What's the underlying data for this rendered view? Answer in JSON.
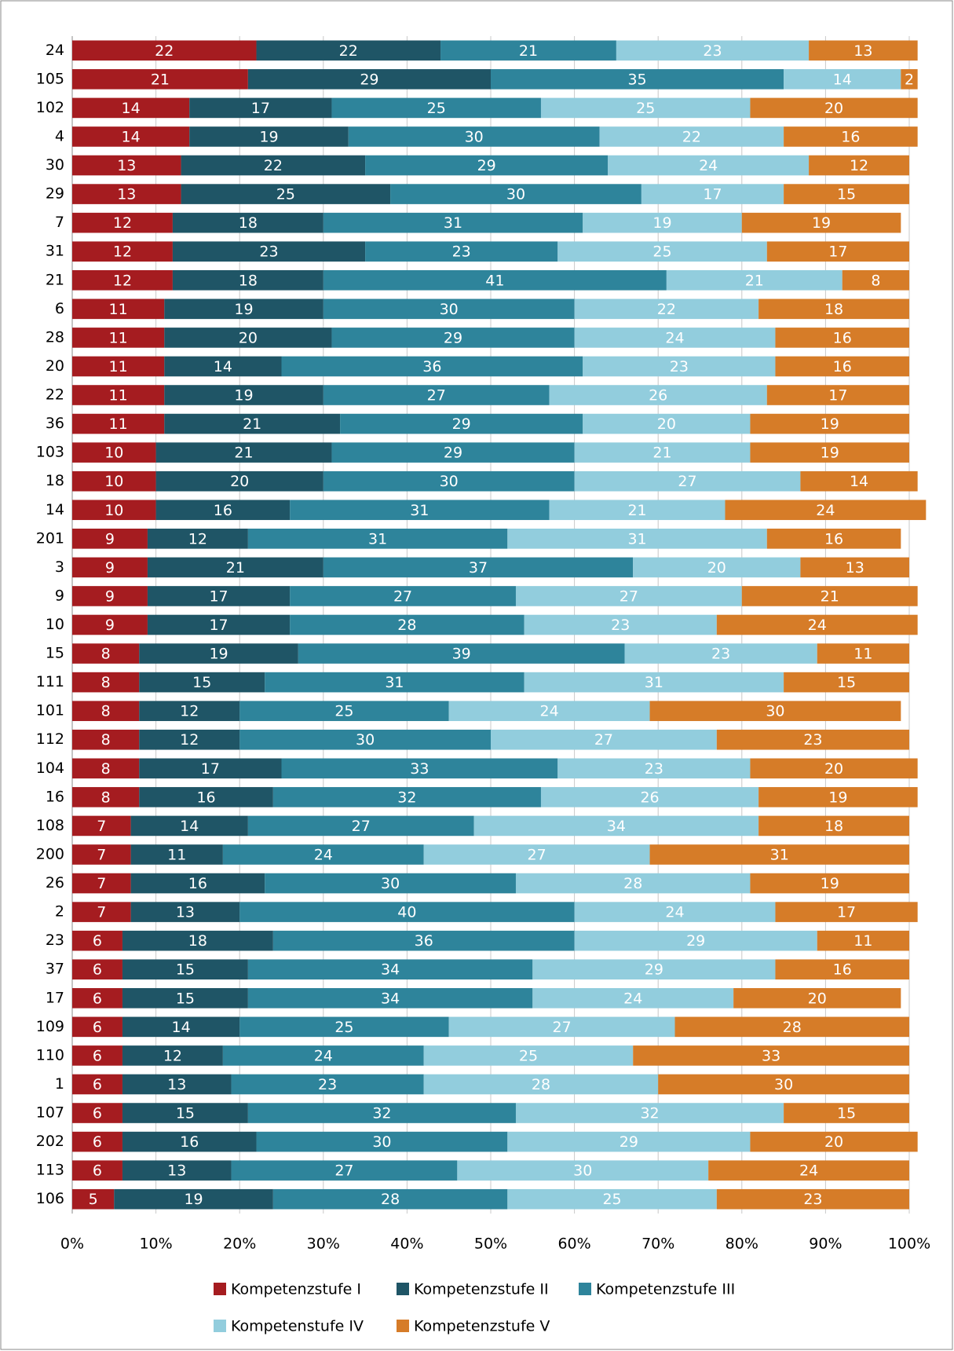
{
  "chart_data": {
    "type": "stacked-bar-horizontal",
    "categories": [
      "24",
      "105",
      "102",
      "4",
      "30",
      "29",
      "7",
      "31",
      "21",
      "6",
      "28",
      "20",
      "22",
      "36",
      "103",
      "18",
      "14",
      "201",
      "3",
      "9",
      "10",
      "15",
      "111",
      "101",
      "112",
      "104",
      "16",
      "108",
      "200",
      "26",
      "2",
      "23",
      "37",
      "17",
      "109",
      "110",
      "1",
      "107",
      "202",
      "113",
      "106"
    ],
    "series": [
      {
        "name": "Kompetenzstufe I",
        "color": "#a51c20",
        "values": [
          22,
          21,
          14,
          14,
          13,
          13,
          12,
          12,
          12,
          11,
          11,
          11,
          11,
          11,
          10,
          10,
          10,
          9,
          9,
          9,
          9,
          8,
          8,
          8,
          8,
          8,
          8,
          7,
          7,
          7,
          7,
          6,
          6,
          6,
          6,
          6,
          6,
          6,
          6,
          6,
          5
        ]
      },
      {
        "name": "Kompetenzstufe II",
        "color": "#1f5566",
        "values": [
          22,
          29,
          17,
          19,
          22,
          25,
          18,
          23,
          18,
          19,
          20,
          14,
          19,
          21,
          21,
          20,
          16,
          12,
          21,
          17,
          17,
          19,
          15,
          12,
          12,
          17,
          16,
          14,
          11,
          16,
          13,
          18,
          15,
          15,
          14,
          12,
          13,
          15,
          16,
          13,
          19
        ]
      },
      {
        "name": "Kompetenzstufe III",
        "color": "#2e849b",
        "values": [
          21,
          35,
          25,
          30,
          29,
          30,
          31,
          23,
          41,
          30,
          29,
          36,
          27,
          29,
          29,
          30,
          31,
          31,
          37,
          27,
          28,
          39,
          31,
          25,
          30,
          33,
          32,
          27,
          24,
          30,
          40,
          36,
          34,
          34,
          25,
          24,
          23,
          32,
          30,
          27,
          28
        ]
      },
      {
        "name": "Kompetenstufe IV",
        "color": "#92cddd",
        "values": [
          23,
          14,
          25,
          22,
          24,
          17,
          19,
          25,
          21,
          22,
          24,
          23,
          26,
          20,
          21,
          27,
          21,
          31,
          20,
          27,
          23,
          23,
          31,
          24,
          27,
          23,
          26,
          34,
          27,
          28,
          24,
          29,
          29,
          24,
          27,
          25,
          28,
          32,
          29,
          30,
          25
        ]
      },
      {
        "name": "Kompetenzstufe V",
        "color": "#d67c28",
        "values": [
          13,
          2,
          20,
          16,
          12,
          15,
          19,
          17,
          8,
          18,
          16,
          16,
          17,
          19,
          19,
          14,
          24,
          16,
          13,
          21,
          24,
          11,
          15,
          30,
          23,
          20,
          19,
          18,
          31,
          19,
          17,
          11,
          16,
          20,
          28,
          33,
          30,
          15,
          20,
          24,
          23
        ]
      }
    ],
    "xlim": [
      0,
      100
    ],
    "xticks": [
      {
        "value": 0,
        "label": "0%"
      },
      {
        "value": 10,
        "label": "10%"
      },
      {
        "value": 20,
        "label": "20%"
      },
      {
        "value": 30,
        "label": "30%"
      },
      {
        "value": 40,
        "label": "40%"
      },
      {
        "value": 50,
        "label": "50%"
      },
      {
        "value": 60,
        "label": "60%"
      },
      {
        "value": 70,
        "label": "70%"
      },
      {
        "value": 80,
        "label": "80%"
      },
      {
        "value": 90,
        "label": "90%"
      },
      {
        "value": 100,
        "label": "100%"
      }
    ],
    "grid": true,
    "legend": "bottom"
  }
}
